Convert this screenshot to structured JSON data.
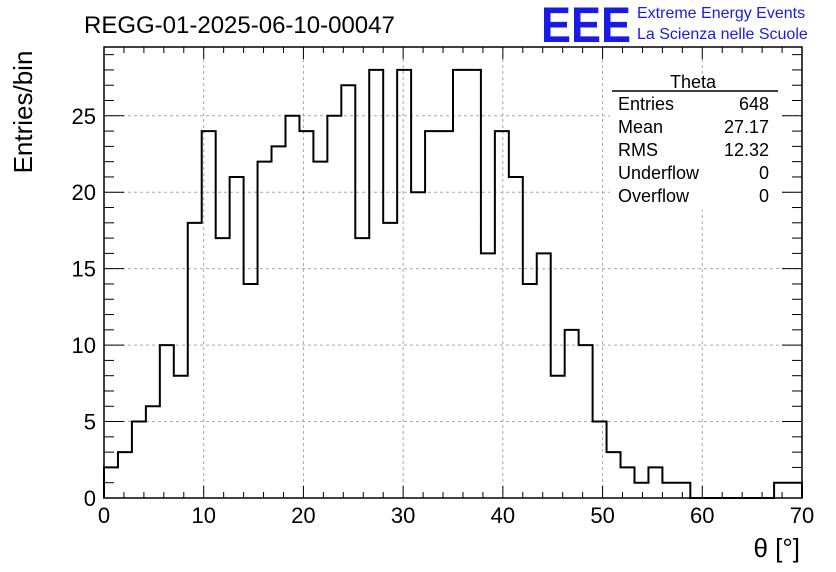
{
  "title": "REGG-01-2025-06-10-00047",
  "logo": {
    "mark": "EEE",
    "line1": "Extreme Energy Events",
    "line2": "La Scienza nelle Scuole",
    "color": "#1a1ae6"
  },
  "stats": {
    "name": "Theta",
    "rows": [
      {
        "label": "Entries",
        "value": "648"
      },
      {
        "label": "Mean",
        "value": "27.17"
      },
      {
        "label": "RMS",
        "value": "12.32"
      },
      {
        "label": "Underflow",
        "value": "0"
      },
      {
        "label": "Overflow",
        "value": "0"
      }
    ]
  },
  "chart_data": {
    "type": "bar",
    "histogram": true,
    "title": "REGG-01-2025-06-10-00047",
    "xlabel": "θ [°]",
    "ylabel": "Entries/bin",
    "xlim": [
      0,
      70
    ],
    "ylim": [
      0,
      29.5
    ],
    "bin_width": 1.4,
    "xticks": [
      0,
      10,
      20,
      30,
      40,
      50,
      60,
      70
    ],
    "yticks": [
      0,
      5,
      10,
      15,
      20,
      25
    ],
    "grid": true,
    "values": [
      2,
      3,
      5,
      6,
      10,
      8,
      18,
      24,
      17,
      21,
      14,
      22,
      23,
      25,
      24,
      22,
      25,
      27,
      17,
      28,
      18,
      28,
      20,
      24,
      24,
      28,
      28,
      16,
      24,
      21,
      14,
      16,
      8,
      11,
      10,
      5,
      3,
      2,
      1,
      2,
      1,
      1,
      0,
      0,
      0,
      0,
      0,
      0,
      1,
      1
    ]
  }
}
